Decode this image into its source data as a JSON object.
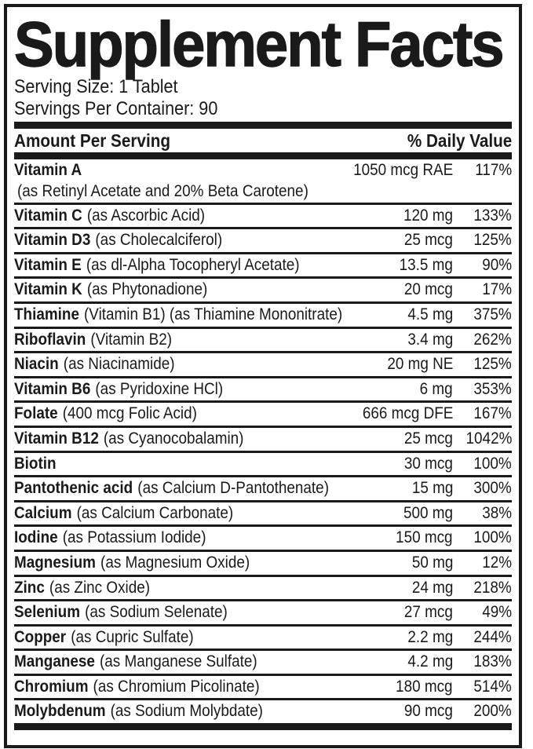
{
  "title": "Supplement Facts",
  "serving": {
    "size": "Serving Size: 1 Tablet",
    "per_container": "Servings Per Container: 90"
  },
  "columns": {
    "amount_header": "Amount Per Serving",
    "dv_header": "% Daily Value"
  },
  "colors": {
    "ink": "#1a1a1a",
    "background": "#ffffff"
  },
  "nutrients": [
    {
      "name": "Vitamin A",
      "source": "",
      "source_line2": "(as Retinyl Acetate and 20% Beta Carotene)",
      "amount": "1050 mcg RAE",
      "daily_value": "117%"
    },
    {
      "name": "Vitamin C",
      "source": "(as Ascorbic Acid)",
      "amount": "120 mg",
      "daily_value": "133%"
    },
    {
      "name": "Vitamin D3",
      "source": "(as Cholecalciferol)",
      "amount": "25 mcg",
      "daily_value": "125%"
    },
    {
      "name": "Vitamin E",
      "source": "(as dl-Alpha Tocopheryl Acetate)",
      "amount": "13.5 mg",
      "daily_value": "90%"
    },
    {
      "name": "Vitamin K",
      "source": "(as Phytonadione)",
      "amount": "20 mcg",
      "daily_value": "17%"
    },
    {
      "name": "Thiamine",
      "source": "(Vitamin B1) (as Thiamine Mononitrate)",
      "amount": "4.5 mg",
      "daily_value": "375%"
    },
    {
      "name": "Riboflavin",
      "source": "(Vitamin B2)",
      "amount": "3.4 mg",
      "daily_value": "262%"
    },
    {
      "name": "Niacin",
      "source": "(as Niacinamide)",
      "amount": "20 mg NE",
      "daily_value": "125%"
    },
    {
      "name": "Vitamin B6",
      "source": "(as Pyridoxine HCl)",
      "amount": "6 mg",
      "daily_value": "353%"
    },
    {
      "name": "Folate",
      "source": "(400 mcg Folic Acid)",
      "amount": "666 mcg DFE",
      "daily_value": "167%"
    },
    {
      "name": "Vitamin B12",
      "source": "(as Cyanocobalamin)",
      "amount": "25 mcg",
      "daily_value": "1042%"
    },
    {
      "name": "Biotin",
      "source": "",
      "amount": "30 mcg",
      "daily_value": "100%"
    },
    {
      "name": "Pantothenic acid",
      "source": "(as Calcium D-Pantothenate)",
      "amount": "15 mg",
      "daily_value": "300%"
    },
    {
      "name": "Calcium",
      "source": "(as Calcium Carbonate)",
      "amount": "500 mg",
      "daily_value": "38%"
    },
    {
      "name": "Iodine",
      "source": "(as Potassium Iodide)",
      "amount": "150 mcg",
      "daily_value": "100%"
    },
    {
      "name": "Magnesium",
      "source": "(as Magnesium Oxide)",
      "amount": "50 mg",
      "daily_value": "12%"
    },
    {
      "name": "Zinc",
      "source": "(as Zinc Oxide)",
      "amount": "24 mg",
      "daily_value": "218%"
    },
    {
      "name": "Selenium",
      "source": "(as Sodium Selenate)",
      "amount": "27 mcg",
      "daily_value": "49%"
    },
    {
      "name": "Copper",
      "source": "(as Cupric Sulfate)",
      "amount": "2.2 mg",
      "daily_value": "244%"
    },
    {
      "name": "Manganese",
      "source": "(as Manganese Sulfate)",
      "amount": "4.2 mg",
      "daily_value": "183%"
    },
    {
      "name": "Chromium",
      "source": "(as Chromium Picolinate)",
      "amount": "180 mcg",
      "daily_value": "514%"
    },
    {
      "name": "Molybdenum",
      "source": "(as Sodium Molybdate)",
      "amount": "90 mcg",
      "daily_value": "200%"
    }
  ]
}
